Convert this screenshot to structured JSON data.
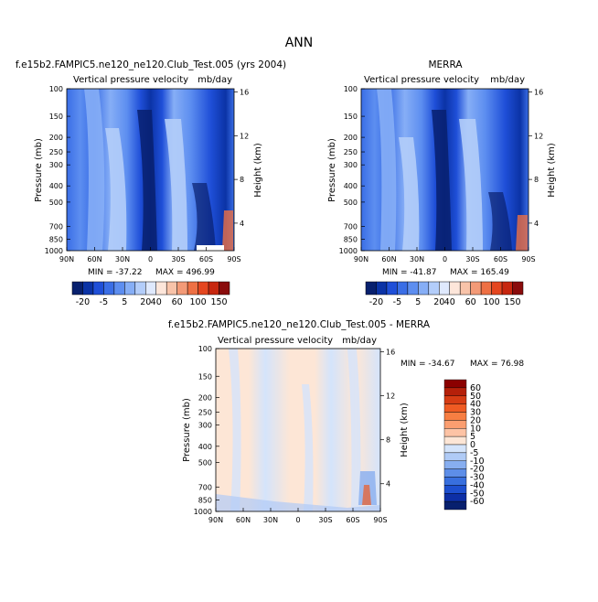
{
  "figure": {
    "title": "ANN",
    "panel_label_left": "f.e15b2.FAMPIC5.ne120_ne120.Club_Test.005 (yrs 2004)",
    "panel_label_right": "MERRA",
    "panel_label_diff": "f.e15b2.FAMPIC5.ne120_ne120.Club_Test.005 - MERRA"
  },
  "chart_data": [
    {
      "type": "heatmap",
      "id": "model",
      "title": "Vertical pressure velocity",
      "units": "mb/day",
      "xlabel": "",
      "ylabel": "Pressure (mb)",
      "y2label": "Height (km)",
      "x_ticks": [
        "90N",
        "60N",
        "30N",
        "0",
        "30S",
        "60S",
        "90S"
      ],
      "y_ticks": [
        "100",
        "150",
        "200",
        "250",
        "300",
        "400",
        "500",
        "700",
        "850",
        "1000"
      ],
      "y2_ticks": [
        "16",
        "12",
        "8",
        "4"
      ],
      "min_text": "MIN = -37.22",
      "max_text": "MAX = 496.99",
      "min": -37.22,
      "max": 496.99,
      "colorbar": {
        "levels": [
          "-20",
          "-5",
          "5",
          "20",
          "40",
          "60",
          "100",
          "150"
        ]
      }
    },
    {
      "type": "heatmap",
      "id": "merra",
      "title": "Vertical pressure velocity",
      "units": "mb/day",
      "xlabel": "",
      "ylabel": "Pressure (mb)",
      "y2label": "Height (km)",
      "x_ticks": [
        "90N",
        "60N",
        "30N",
        "0",
        "30S",
        "60S",
        "90S"
      ],
      "y_ticks": [
        "100",
        "150",
        "200",
        "250",
        "300",
        "400",
        "500",
        "700",
        "850",
        "1000"
      ],
      "y2_ticks": [
        "16",
        "12",
        "8",
        "4"
      ],
      "min_text": "MIN = -41.87",
      "max_text": "MAX = 165.49",
      "min": -41.87,
      "max": 165.49,
      "colorbar": {
        "levels": [
          "-20",
          "-5",
          "5",
          "20",
          "40",
          "60",
          "100",
          "150"
        ]
      }
    },
    {
      "type": "heatmap",
      "id": "diff",
      "title": "Vertical pressure velocity",
      "units": "mb/day",
      "xlabel": "",
      "ylabel": "Pressure (mb)",
      "y2label": "Height (km)",
      "x_ticks": [
        "90N",
        "60N",
        "30N",
        "0",
        "30S",
        "60S",
        "90S"
      ],
      "y_ticks": [
        "100",
        "150",
        "200",
        "250",
        "300",
        "400",
        "500",
        "700",
        "850",
        "1000"
      ],
      "y2_ticks": [
        "16",
        "12",
        "8",
        "4"
      ],
      "min_text": "MIN = -34.67",
      "max_text": "MAX =  76.98",
      "min": -34.67,
      "max": 76.98,
      "colorbar": {
        "levels": [
          "60",
          "50",
          "40",
          "30",
          "20",
          "10",
          "5",
          "0",
          "-5",
          "-10",
          "-20",
          "-30",
          "-40",
          "-50",
          "-60"
        ]
      }
    }
  ],
  "colors": {
    "main_scale": [
      "#08206e",
      "#0b33a6",
      "#1f4fd8",
      "#3a6ee6",
      "#5d8ef0",
      "#86aef6",
      "#b3cdfa",
      "#dfe9fd",
      "#fde6da",
      "#f8c3a9",
      "#f39a77",
      "#ee7044",
      "#e4461f",
      "#c7270f",
      "#8a0c0c"
    ],
    "diff_scale": [
      "#8b0000",
      "#b5200a",
      "#d63c14",
      "#ef5b23",
      "#f77e42",
      "#fb9e70",
      "#fdc3a5",
      "#fde6d6",
      "#d4e4fb",
      "#b0cbf6",
      "#87aef0",
      "#5d8ee8",
      "#386fde",
      "#1d4fcf",
      "#0d2fa6",
      "#07206e"
    ]
  }
}
